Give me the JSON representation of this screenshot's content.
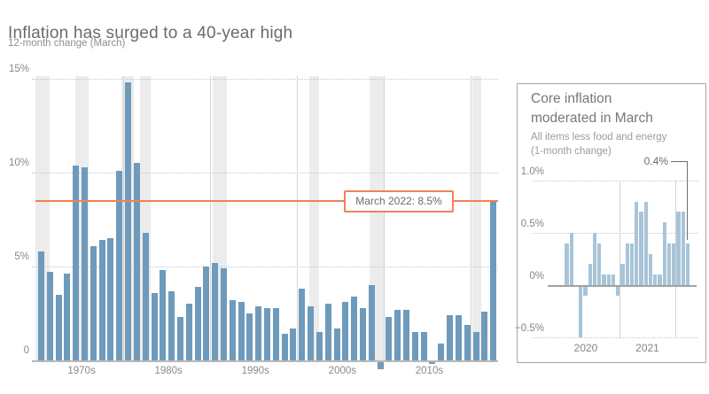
{
  "header": {
    "title": "Inflation has surged to a 40-year high",
    "subtitle": "12-month change (March)"
  },
  "main_chart": {
    "callout_label": "March 2022: 8.5%",
    "highlight_value": 8.5,
    "y_ticks": [
      "15%",
      "10%",
      "5%",
      "0"
    ],
    "x_ticks": [
      "1970s",
      "1980s",
      "1990s",
      "2000s",
      "2010s"
    ]
  },
  "inset": {
    "title_line1": "Core inflation",
    "title_line2": "moderated in March",
    "subtitle_line1": "All items less food and energy",
    "subtitle_line2": "(1-month change)",
    "annotation_label": "0.4%",
    "annotation_value": 0.4,
    "y_ticks": [
      "1.0%",
      "0.5%",
      "0%",
      "−0.5%"
    ],
    "x_ticks": [
      "2020",
      "2021"
    ]
  },
  "colors": {
    "main_bar": "#6e9abc",
    "inset_bar": "#a8c4d8",
    "accent_orange": "#f28057",
    "recession_band": "#ececec"
  },
  "chart_data": [
    {
      "type": "bar",
      "title": "Inflation has surged to a 40-year high",
      "subtitle": "12-month change (March)",
      "start_year": 1970,
      "values": [
        5.8,
        4.7,
        3.5,
        4.6,
        10.4,
        10.3,
        6.1,
        6.4,
        6.5,
        10.1,
        14.8,
        10.5,
        6.8,
        3.6,
        4.8,
        3.7,
        2.3,
        3.0,
        3.9,
        5.0,
        5.2,
        4.9,
        3.2,
        3.1,
        2.5,
        2.9,
        2.8,
        2.8,
        1.4,
        1.7,
        3.8,
        2.9,
        1.5,
        3.0,
        1.7,
        3.1,
        3.4,
        2.8,
        4.0,
        -0.4,
        2.3,
        2.7,
        2.7,
        1.5,
        1.5,
        -0.1,
        0.9,
        2.4,
        2.4,
        1.9,
        1.5,
        2.6,
        8.5
      ],
      "unit": "percent",
      "ylim": [
        -0.5,
        15
      ],
      "y_gridlines": [
        5,
        10,
        15
      ],
      "reference_line": {
        "value": 8.5,
        "label": "March 2022: 8.5%"
      },
      "recession_bands": [
        [
          1969.7,
          1971.3
        ],
        [
          1974.3,
          1975.8
        ],
        [
          1979.6,
          1981.0
        ],
        [
          1981.7,
          1982.9
        ],
        [
          1990.1,
          1991.7
        ],
        [
          2001.2,
          2002.3
        ],
        [
          2008.1,
          2009.75
        ],
        [
          2019.95,
          2021.0
        ]
      ],
      "decade_dividers": [
        1980,
        1990,
        2000,
        2010,
        2020
      ]
    },
    {
      "type": "bar",
      "title": "Core inflation moderated in March",
      "subtitle": "All items less food and energy (1-month change)",
      "start_month": "2020-01",
      "values": [
        0.4,
        0.5,
        0.0,
        -0.5,
        -0.1,
        0.2,
        0.5,
        0.4,
        0.1,
        0.1,
        0.1,
        -0.1,
        0.2,
        0.4,
        0.4,
        0.8,
        0.7,
        0.8,
        0.3,
        0.1,
        0.1,
        0.6,
        0.4,
        0.4,
        0.7,
        0.7,
        0.4
      ],
      "unit": "percent",
      "ylim": [
        -0.6,
        1.1
      ],
      "y_gridlines": [
        1.0,
        0.5,
        -0.5
      ],
      "year_dividers_at_month_index": [
        12,
        24
      ],
      "annotation": {
        "label": "0.4%",
        "month": "2022-03"
      }
    }
  ]
}
